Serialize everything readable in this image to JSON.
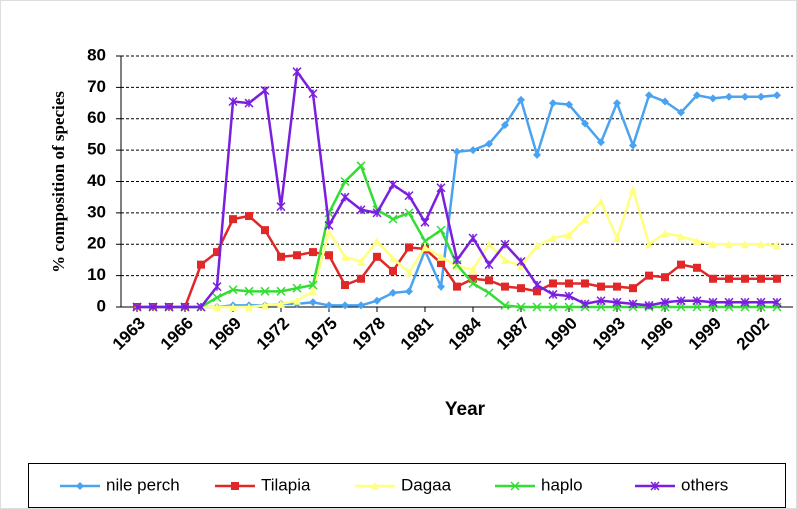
{
  "chart_data": {
    "type": "line",
    "x_label": "Year",
    "y_label": "% composition of species",
    "x": [
      1963,
      1964,
      1965,
      1966,
      1967,
      1968,
      1969,
      1970,
      1971,
      1972,
      1973,
      1974,
      1975,
      1976,
      1977,
      1978,
      1979,
      1980,
      1981,
      1982,
      1983,
      1984,
      1985,
      1986,
      1987,
      1988,
      1989,
      1990,
      1991,
      1992,
      1993,
      1994,
      1995,
      1996,
      1997,
      1998,
      1999,
      2000,
      2001,
      2002,
      2003
    ],
    "xlim": [
      1962,
      2004
    ],
    "xticks": [
      1963,
      1966,
      1969,
      1972,
      1975,
      1978,
      1981,
      1984,
      1987,
      1990,
      1993,
      1996,
      1999,
      2002
    ],
    "ylim": [
      0,
      80
    ],
    "yticks": [
      0,
      10,
      20,
      30,
      40,
      50,
      60,
      70,
      80
    ],
    "grid": true,
    "legend": "bottom",
    "series": [
      {
        "name": "nile perch",
        "color": "#4aa3f0",
        "marker": "diamond",
        "values": [
          0,
          0,
          0,
          0,
          0,
          0,
          0.5,
          0.5,
          0.5,
          1,
          1,
          1.5,
          0.5,
          0.5,
          0.5,
          2,
          4.5,
          5,
          18,
          6.5,
          49.5,
          50,
          52,
          58,
          66,
          48.5,
          65,
          64.5,
          58.5,
          52.5,
          65,
          51.5,
          67.5,
          65.5,
          62,
          67.5,
          66.5,
          67,
          67,
          67,
          67.5
        ]
      },
      {
        "name": "Tilapia",
        "color": "#e02828",
        "marker": "square",
        "values": [
          0,
          0,
          0,
          0,
          13.5,
          17.5,
          28,
          29,
          24.5,
          16,
          16.5,
          17.5,
          16.5,
          7,
          9,
          16,
          11.5,
          19,
          18.5,
          14,
          6.5,
          9,
          8.5,
          6.5,
          6,
          5,
          7.5,
          7.5,
          7.5,
          6.5,
          6.5,
          6,
          10,
          9.5,
          13.5,
          12.5,
          9,
          9,
          9,
          9,
          9
        ]
      },
      {
        "name": "Dagaa",
        "color": "#ffff80",
        "marker": "triangle",
        "values": [
          0,
          0,
          0,
          0,
          0,
          0,
          0,
          0,
          0.5,
          1,
          2,
          5,
          24,
          16,
          14.5,
          21,
          15.5,
          11,
          19,
          16,
          13,
          12,
          20,
          15,
          13,
          19.5,
          22,
          23,
          28,
          33.5,
          22,
          37.5,
          20,
          23.5,
          22.5,
          21,
          20,
          20,
          20,
          20,
          19.5
        ]
      },
      {
        "name": "haplo",
        "color": "#33dd33",
        "marker": "x",
        "values": [
          0,
          0,
          0,
          0,
          0,
          3,
          5.5,
          5,
          5,
          5,
          6,
          7,
          30,
          40,
          45,
          31,
          28,
          30,
          21,
          24.5,
          13.5,
          7.5,
          4.5,
          0.5,
          0,
          0,
          0,
          0,
          0,
          0,
          0,
          0,
          0,
          0,
          0,
          0,
          0,
          0,
          0,
          0,
          0
        ]
      },
      {
        "name": "others",
        "color": "#7a1fe0",
        "marker": "star",
        "values": [
          0,
          0,
          0,
          0,
          0,
          6.5,
          65.5,
          65,
          69,
          32,
          75,
          68,
          26,
          35,
          31,
          30,
          39,
          35.5,
          27,
          38,
          15,
          22,
          13.5,
          20,
          14.5,
          7,
          4,
          3.5,
          1,
          2,
          1.5,
          1,
          0.5,
          1.5,
          2,
          2,
          1.5,
          1.5,
          1.5,
          1.5,
          1.5
        ]
      }
    ]
  }
}
